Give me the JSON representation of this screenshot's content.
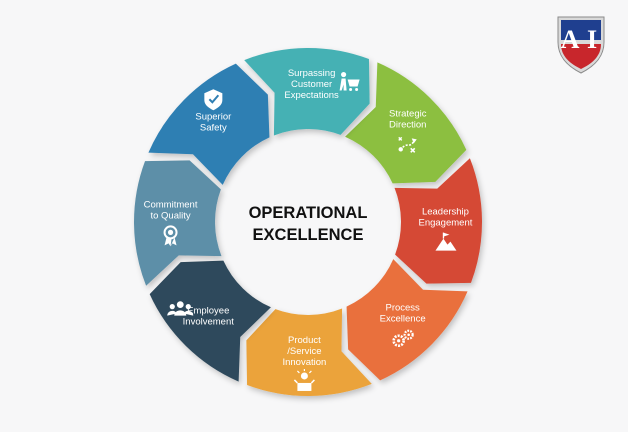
{
  "center": {
    "line1": "OPERATIONAL",
    "line2": "EXCELLENCE"
  },
  "segments": [
    {
      "lines": [
        "Strategic",
        "Direction"
      ],
      "color": "#8cbf3f",
      "icon": "strategy-play-icon"
    },
    {
      "lines": [
        "Leadership",
        "Engagement"
      ],
      "color": "#d54a35",
      "icon": "summit-flag-icon"
    },
    {
      "lines": [
        "Process",
        "Excellence"
      ],
      "color": "#e9703c",
      "icon": "gears-icon"
    },
    {
      "lines": [
        "Product",
        "/Service",
        "Innovation"
      ],
      "color": "#eba33a",
      "icon": "idea-box-icon"
    },
    {
      "lines": [
        "Employee",
        "Involvement"
      ],
      "color": "#2f4a5c",
      "icon": "team-icon"
    },
    {
      "lines": [
        "Commitment",
        "to Quality"
      ],
      "color": "#5d8fa8",
      "icon": "award-ribbon-icon"
    },
    {
      "lines": [
        "Superior",
        "Safety"
      ],
      "color": "#2f7fb3",
      "icon": "shield-check-icon"
    },
    {
      "lines": [
        "Surpassing",
        "Customer",
        "Expectations"
      ],
      "color": "#45b1b4",
      "icon": "shopping-cart-person-icon"
    }
  ],
  "logo": {
    "letters": "AI",
    "colors": {
      "top": "#1f3f8f",
      "bottom": "#c8262c",
      "trim": "#d9d9d9"
    }
  }
}
